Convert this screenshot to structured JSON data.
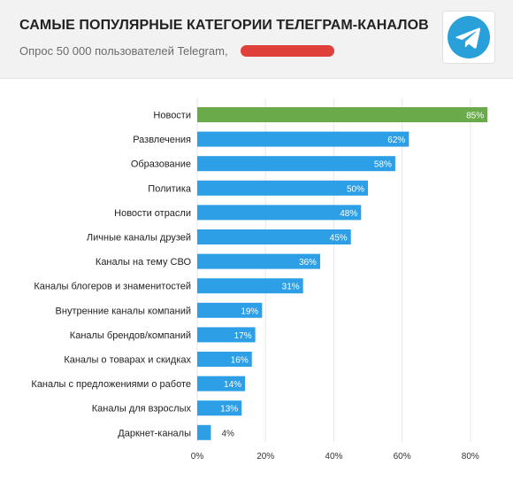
{
  "header": {
    "title": "САМЫЕ ПОПУЛЯРНЫЕ КАТЕГОРИИ ТЕЛЕГРАМ-КАНАЛОВ",
    "subtitle": "Опрос 50 000 пользователей Telegram,",
    "logo_icon": "telegram-plane-icon",
    "logo_color": "#29a0da",
    "redaction_color": "#e0403a"
  },
  "chart_data": {
    "type": "bar",
    "orientation": "horizontal",
    "title": "",
    "xlabel": "",
    "ylabel": "",
    "categories": [
      "Новости",
      "Развлечения",
      "Образование",
      "Политика",
      "Новости отрасли",
      "Личные каналы друзей",
      "Каналы на тему СВО",
      "Каналы блогеров и знаменитостей",
      "Внутренние каналы компаний",
      "Каналы брендов/компаний",
      "Каналы о товарах и скидках",
      "Каналы с предложениями о работе",
      "Каналы для взрослых",
      "Даркнет-каналы"
    ],
    "values": [
      85,
      62,
      58,
      50,
      48,
      45,
      36,
      31,
      19,
      17,
      16,
      14,
      13,
      4
    ],
    "value_labels": [
      "85%",
      "62%",
      "58%",
      "50%",
      "48%",
      "45%",
      "36%",
      "31%",
      "19%",
      "17%",
      "16%",
      "14%",
      "13%",
      "4%"
    ],
    "xlim": [
      0,
      85
    ],
    "xticks": [
      0,
      20,
      40,
      60,
      80
    ],
    "xtick_labels": [
      "0%",
      "20%",
      "40%",
      "60%",
      "80%"
    ],
    "grid": "vertical",
    "colors": {
      "highlight": "#6aaa4b",
      "bar": "#2c9fe6",
      "grid": "#e6e6e6",
      "value_outside": "#333333",
      "value_inside": "#ffffff"
    }
  }
}
